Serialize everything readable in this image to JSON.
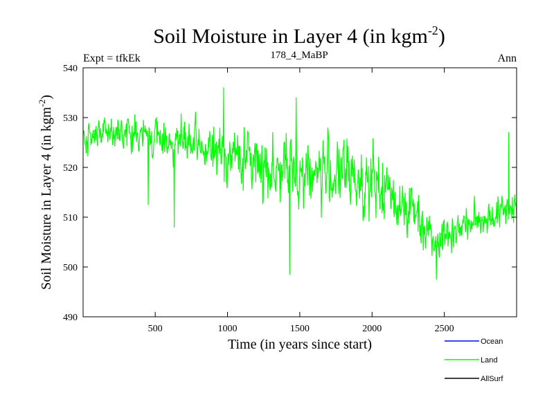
{
  "chart_data": {
    "type": "line",
    "title": "Soil Moisture in Layer 4 (in kgm",
    "title_superscript": "-2",
    "title_close": ")",
    "subtitle_left": "Expt = tfkEk",
    "subtitle_center": "178_4_MaBP",
    "subtitle_right": "Ann",
    "xlabel": "Time (in years since start)",
    "ylabel": "Soil Moisture in Layer 4 (in kgm",
    "ylabel_superscript": "-2",
    "ylabel_close": ")",
    "xlim": [
      1,
      3000
    ],
    "ylim": [
      490,
      540
    ],
    "x_ticks": [
      500,
      1000,
      1500,
      2000,
      2500
    ],
    "x_tick_labels": [
      "500",
      "1000",
      "1500",
      "2000",
      "2500"
    ],
    "y_ticks": [
      490,
      500,
      510,
      520,
      530,
      540
    ],
    "y_tick_labels": [
      "490",
      "500",
      "510",
      "520",
      "530",
      "540"
    ],
    "legend_position": "bottom-right, outside plot",
    "legend": [
      {
        "name": "Ocean",
        "color": "#0000ff"
      },
      {
        "name": "Land",
        "color": "#00ff00"
      },
      {
        "name": "AllSurf",
        "color": "#000000"
      }
    ],
    "series": [
      {
        "name": "Land",
        "color": "#00ff00",
        "trend_x": [
          1,
          250,
          500,
          700,
          900,
          1100,
          1300,
          1500,
          1700,
          1900,
          2100,
          2300,
          2400,
          2500,
          2600,
          2700,
          2800,
          2900,
          3000
        ],
        "trend_y": [
          526,
          527,
          526,
          525,
          523,
          522,
          520,
          519,
          519,
          518,
          515,
          511,
          507,
          506,
          508,
          509,
          510,
          511,
          513
        ],
        "amplitude_x": [
          1,
          600,
          900,
          1200,
          1500,
          2000,
          2300,
          2500,
          2700,
          3000
        ],
        "amplitude_y": [
          3.5,
          4,
          5,
          6.5,
          7,
          7,
          6,
          4,
          3.5,
          4
        ],
        "peaks": [
          {
            "x": 975,
            "y": 536
          },
          {
            "x": 1475,
            "y": 534
          },
          {
            "x": 2945,
            "y": 527
          }
        ],
        "troughs": [
          {
            "x": 450,
            "y": 512.5
          },
          {
            "x": 630,
            "y": 508
          },
          {
            "x": 1430,
            "y": 498.5
          },
          {
            "x": 2445,
            "y": 497.5
          }
        ]
      }
    ]
  }
}
